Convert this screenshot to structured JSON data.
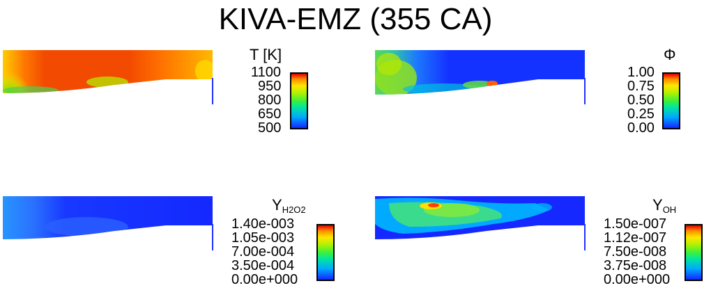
{
  "title": "KIVA-EMZ (355 CA)",
  "panels": {
    "temperature": {
      "variable": "T [K]",
      "ticks": [
        "1100",
        "950",
        "800",
        "650",
        "500"
      ]
    },
    "phi": {
      "variable": "Φ",
      "ticks": [
        "1.00",
        "0.75",
        "0.50",
        "0.25",
        "0.00"
      ]
    },
    "h2o2": {
      "variable_base": "Y",
      "variable_sub": "H2O2",
      "ticks": [
        "1.40e-003",
        "1.05e-003",
        "7.00e-004",
        "3.50e-004",
        "0.00e+000"
      ]
    },
    "oh": {
      "variable_base": "Y",
      "variable_sub": "OH",
      "ticks": [
        "1.50e-007",
        "1.12e-007",
        "7.50e-008",
        "3.75e-008",
        "0.00e+000"
      ]
    }
  },
  "colormap": [
    "#1428ff",
    "#00a8ff",
    "#00e6a0",
    "#3cf03c",
    "#b4f000",
    "#ffe600",
    "#ff8c00",
    "#e00000"
  ]
}
